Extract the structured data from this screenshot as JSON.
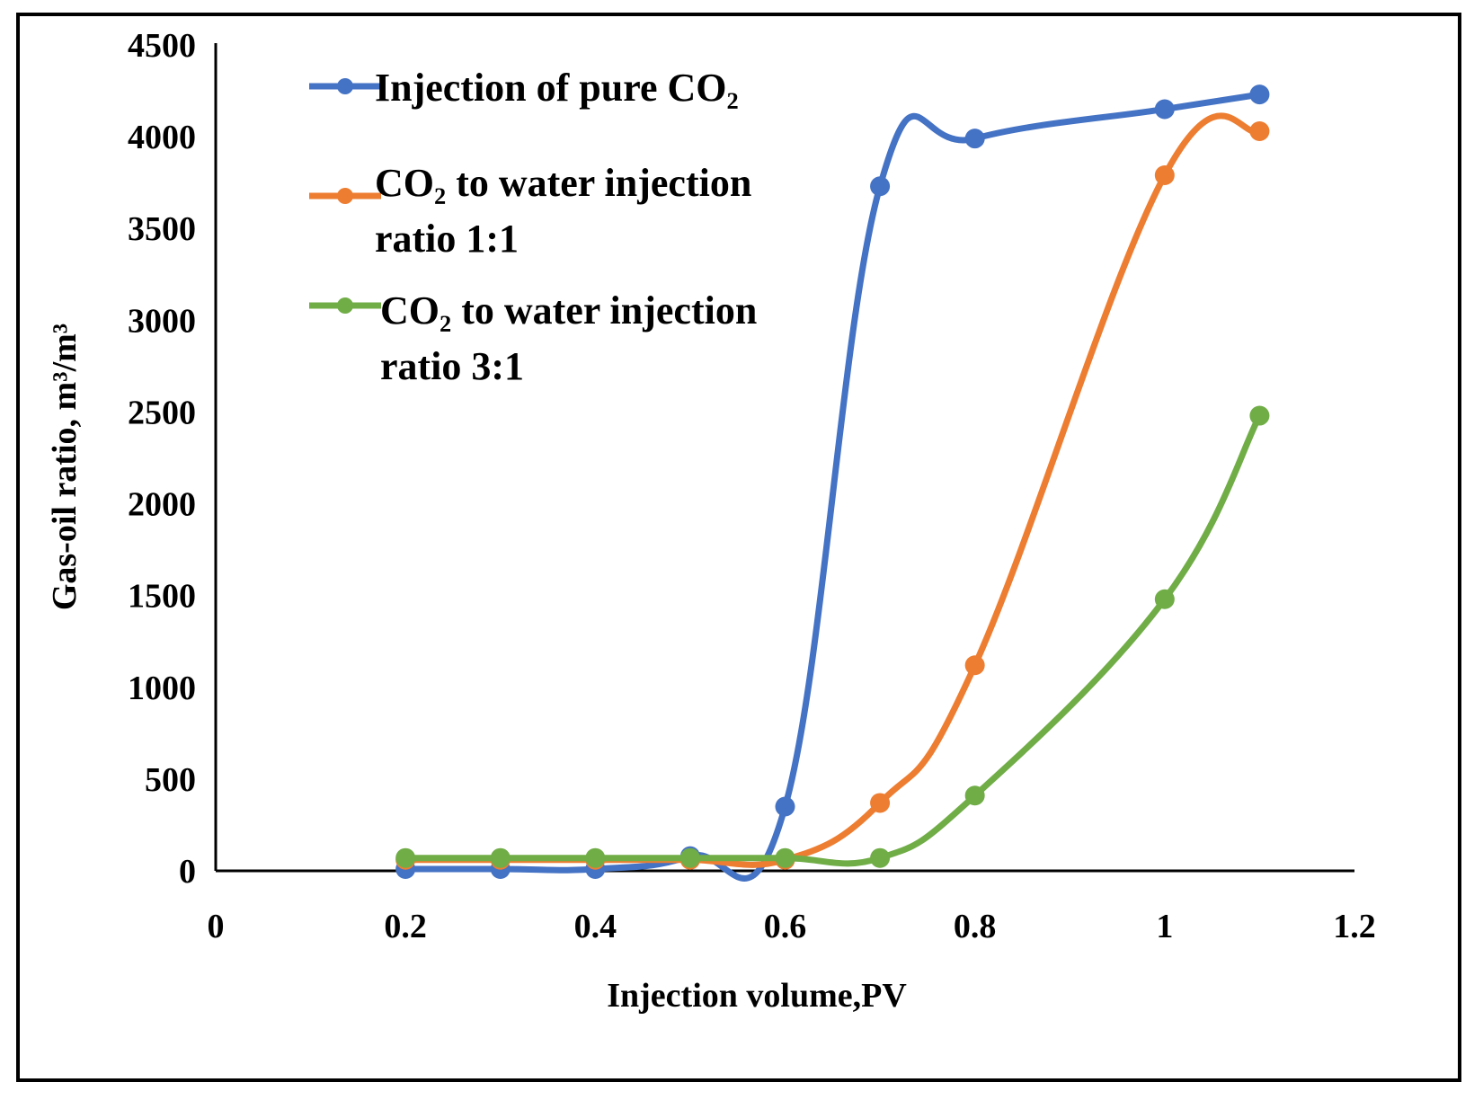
{
  "chart_data": {
    "type": "line",
    "title": "",
    "xlabel": "Injection volume,PV",
    "ylabel": "Gas-oil ratio, m³/m³",
    "xlim": [
      0,
      1.2
    ],
    "ylim": [
      0,
      4500
    ],
    "xticks": [
      "0",
      "0.2",
      "0.4",
      "0.6",
      "0.8",
      "1",
      "1.2"
    ],
    "yticks": [
      "0",
      "500",
      "1000",
      "1500",
      "2000",
      "2500",
      "3000",
      "3500",
      "4000",
      "4500"
    ],
    "grid": false,
    "legend_position": "top-left",
    "series": [
      {
        "name": "Injection of pure CO₂",
        "color": "#4472C4",
        "x": [
          0.2,
          0.3,
          0.4,
          0.5,
          0.6,
          0.7,
          0.8,
          1.0,
          1.1
        ],
        "y": [
          10,
          10,
          10,
          80,
          350,
          3730,
          3990,
          4150,
          4230
        ]
      },
      {
        "name": "CO₂ to water injection ratio 1:1",
        "color": "#ED7D31",
        "x": [
          0.2,
          0.3,
          0.4,
          0.5,
          0.6,
          0.7,
          0.8,
          1.0,
          1.1
        ],
        "y": [
          60,
          60,
          60,
          60,
          60,
          370,
          1120,
          3790,
          4030
        ]
      },
      {
        "name": "CO₂ to water injection ratio 3:1",
        "color": "#70AD47",
        "x": [
          0.2,
          0.3,
          0.4,
          0.5,
          0.6,
          0.7,
          0.8,
          1.0,
          1.1
        ],
        "y": [
          70,
          70,
          70,
          70,
          70,
          70,
          410,
          1480,
          2480
        ]
      }
    ]
  },
  "legend": {
    "entry1_line1": "Injection of pure CO₂",
    "entry2_line1": "CO₂ to water injection",
    "entry2_line2": "ratio 1:1",
    "entry3_line1": "CO₂ to water injection",
    "entry3_line2": "ratio 3:1"
  }
}
